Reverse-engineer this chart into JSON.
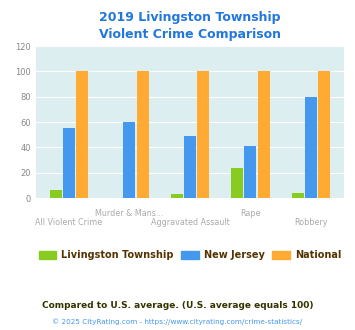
{
  "title": "2019 Livingston Township\nViolent Crime Comparison",
  "title_color": "#2277dd",
  "x_labels_line1": [
    "",
    "Murder & Mans...",
    "",
    "Rape",
    ""
  ],
  "x_labels_line2": [
    "All Violent Crime",
    "",
    "Aggravated Assault",
    "",
    "Robbery"
  ],
  "livingston": [
    6,
    0,
    3,
    24,
    4
  ],
  "new_jersey": [
    55,
    60,
    49,
    41,
    80
  ],
  "national": [
    100,
    100,
    100,
    100,
    100
  ],
  "livingston_color": "#88cc22",
  "nj_color": "#4499ee",
  "national_color": "#ffaa33",
  "bg_color": "#ddeef0",
  "ylim": [
    0,
    120
  ],
  "yticks": [
    0,
    20,
    40,
    60,
    80,
    100,
    120
  ],
  "legend_labels": [
    "Livingston Township",
    "New Jersey",
    "National"
  ],
  "footnote1": "Compared to U.S. average. (U.S. average equals 100)",
  "footnote2": "© 2025 CityRating.com - https://www.cityrating.com/crime-statistics/",
  "footnote1_color": "#333300",
  "footnote2_color": "#4499ee",
  "xtick_color": "#aaaaaa"
}
